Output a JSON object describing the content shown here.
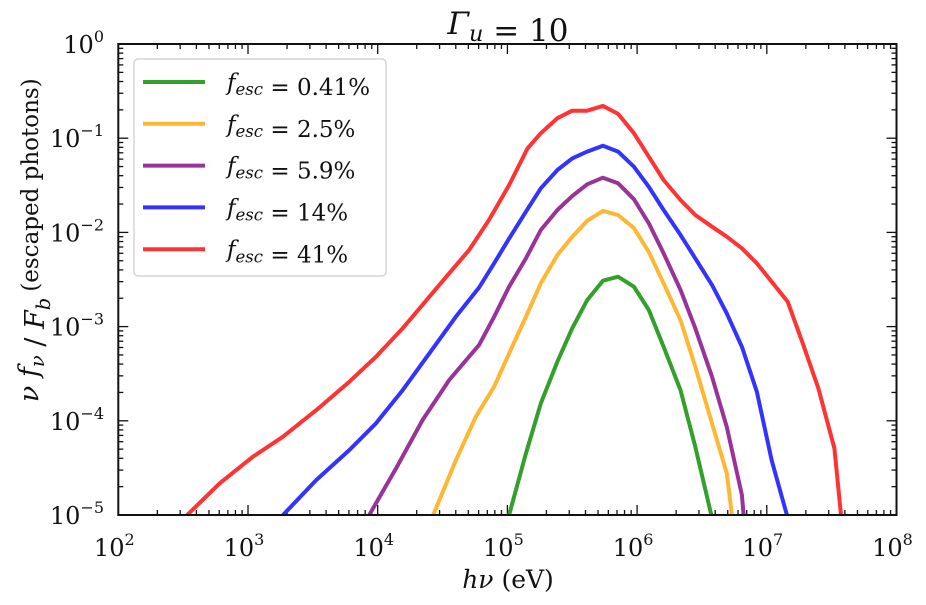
{
  "chart_data": {
    "type": "line",
    "title": "Γ_u = 10",
    "xlabel": "hν (eV)",
    "ylabel": "ν f_ν / F_b",
    "ylabel_note": "(escaped photons)",
    "xscale": "log",
    "yscale": "log",
    "xlim": [
      100.0,
      100000000.0
    ],
    "ylim": [
      1e-05,
      1.0
    ],
    "x_ticks": [
      "10^2",
      "10^3",
      "10^4",
      "10^5",
      "10^6",
      "10^7",
      "10^8"
    ],
    "y_ticks": [
      "10^-5",
      "10^-4",
      "10^-3",
      "10^-2",
      "10^-1",
      "10^0"
    ],
    "grid": false,
    "legend_position": "top-left",
    "series": [
      {
        "name": "f_esc = 0.41%",
        "color": "#33a02c",
        "points": [
          [
            103000.0,
            1e-05
          ],
          [
            139000.0,
            4.5e-05
          ],
          [
            181000.0,
            0.000153
          ],
          [
            243000.0,
            0.000425
          ],
          [
            316000.0,
            0.00096
          ],
          [
            412000.0,
            0.00191
          ],
          [
            545000.0,
            0.00307
          ],
          [
            714000.0,
            0.00339
          ],
          [
            944000.0,
            0.00265
          ],
          [
            1230000.0,
            0.0015
          ],
          [
            1600000.0,
            0.00061
          ],
          [
            2160000.0,
            0.000212
          ],
          [
            2810000.0,
            5.3e-05
          ],
          [
            3730000.0,
            1e-05
          ]
        ]
      },
      {
        "name": "f_esc = 2.5%",
        "color": "#ffb733",
        "points": [
          [
            26800.0,
            1e-05
          ],
          [
            40000.0,
            3.8e-05
          ],
          [
            57000.0,
            0.00011
          ],
          [
            79000.0,
            0.00023
          ],
          [
            103000.0,
            0.00052
          ],
          [
            139000.0,
            0.00127
          ],
          [
            181000.0,
            0.00288
          ],
          [
            243000.0,
            0.00575
          ],
          [
            316000.0,
            0.009
          ],
          [
            412000.0,
            0.0133
          ],
          [
            545000.0,
            0.0169
          ],
          [
            714000.0,
            0.0153
          ],
          [
            944000.0,
            0.0111
          ],
          [
            1230000.0,
            0.0062
          ],
          [
            1600000.0,
            0.00288
          ],
          [
            2160000.0,
            0.00117
          ],
          [
            2810000.0,
            0.000375
          ],
          [
            3780000.0,
            9.4e-05
          ],
          [
            4920000.0,
            2.77e-05
          ],
          [
            5380000.0,
            1e-05
          ]
        ]
      },
      {
        "name": "f_esc = 5.9%",
        "color": "#993399",
        "points": [
          [
            8600.0,
            1e-05
          ],
          [
            13900.0,
            3.15e-05
          ],
          [
            22200.0,
            0.000102
          ],
          [
            35600.0,
            0.000271
          ],
          [
            60500.0,
            0.00064
          ],
          [
            79000.0,
            0.00127
          ],
          [
            103000.0,
            0.00265
          ],
          [
            139000.0,
            0.0053
          ],
          [
            181000.0,
            0.0106
          ],
          [
            243000.0,
            0.0173
          ],
          [
            316000.0,
            0.0243
          ],
          [
            412000.0,
            0.0324
          ],
          [
            545000.0,
            0.0381
          ],
          [
            714000.0,
            0.0332
          ],
          [
            944000.0,
            0.0225
          ],
          [
            1230000.0,
            0.0125
          ],
          [
            1600000.0,
            0.006
          ],
          [
            2160000.0,
            0.00245
          ],
          [
            2810000.0,
            0.00096
          ],
          [
            3780000.0,
            0.000294
          ],
          [
            4920000.0,
            8.6e-05
          ],
          [
            6430000.0,
            1.63e-05
          ],
          [
            6620000.0,
            1e-05
          ]
        ]
      },
      {
        "name": "f_esc = 14%",
        "color": "#3333ff",
        "points": [
          [
            1860.0,
            1e-05
          ],
          [
            3360.0,
            2.35e-05
          ],
          [
            6050.0,
            4.9e-05
          ],
          [
            9700.0,
            9.4e-05
          ],
          [
            15600.0,
            0.000212
          ],
          [
            25000.0,
            0.00052
          ],
          [
            40000.0,
            0.00127
          ],
          [
            60500.0,
            0.0026
          ],
          [
            79000.0,
            0.0047
          ],
          [
            103000.0,
            0.0086
          ],
          [
            139000.0,
            0.0166
          ],
          [
            181000.0,
            0.0294
          ],
          [
            243000.0,
            0.046
          ],
          [
            316000.0,
            0.061
          ],
          [
            412000.0,
            0.072
          ],
          [
            545000.0,
            0.083
          ],
          [
            714000.0,
            0.072
          ],
          [
            944000.0,
            0.0498
          ],
          [
            1230000.0,
            0.0305
          ],
          [
            1600000.0,
            0.0173
          ],
          [
            2160000.0,
            0.0094
          ],
          [
            2810000.0,
            0.0053
          ],
          [
            3780000.0,
            0.00277
          ],
          [
            4920000.0,
            0.00138
          ],
          [
            6430000.0,
            0.00061
          ],
          [
            8370000.0,
            0.000204
          ],
          [
            10900000.0,
            3.8e-05
          ],
          [
            14300000.0,
            1e-05
          ]
        ]
      },
      {
        "name": "f_esc = 41%",
        "color": "#ff3333",
        "points": [
          [
            340.0,
            1e-05
          ],
          [
            605.0,
            2.17e-05
          ],
          [
            1090.0,
            4.16e-05
          ],
          [
            1860.0,
            6.78e-05
          ],
          [
            3360.0,
            0.00013
          ],
          [
            6050.0,
            0.00026
          ],
          [
            9700.0,
            0.000479
          ],
          [
            15600.0,
            0.00096
          ],
          [
            25000.0,
            0.00207
          ],
          [
            35600.0,
            0.00368
          ],
          [
            50700.0,
            0.0065
          ],
          [
            72300.0,
            0.0136
          ],
          [
            103000.0,
            0.0318
          ],
          [
            143000.0,
            0.078
          ],
          [
            181000.0,
            0.113
          ],
          [
            243000.0,
            0.163
          ],
          [
            316000.0,
            0.196
          ],
          [
            412000.0,
            0.196
          ],
          [
            545000.0,
            0.22
          ],
          [
            714000.0,
            0.181
          ],
          [
            944000.0,
            0.113
          ],
          [
            1230000.0,
            0.0637
          ],
          [
            1600000.0,
            0.036
          ],
          [
            2160000.0,
            0.0221
          ],
          [
            2810000.0,
            0.0153
          ],
          [
            3780000.0,
            0.0115
          ],
          [
            4920000.0,
            0.009
          ],
          [
            6430000.0,
            0.00678
          ],
          [
            8370000.0,
            0.0047
          ],
          [
            10900000.0,
            0.003
          ],
          [
            14500000.0,
            0.00184
          ],
          [
            19100000.0,
            0.00064
          ],
          [
            25000000.0,
            0.00022
          ],
          [
            33200000.0,
            5.1e-05
          ],
          [
            37300000.0,
            1e-05
          ]
        ]
      }
    ]
  }
}
